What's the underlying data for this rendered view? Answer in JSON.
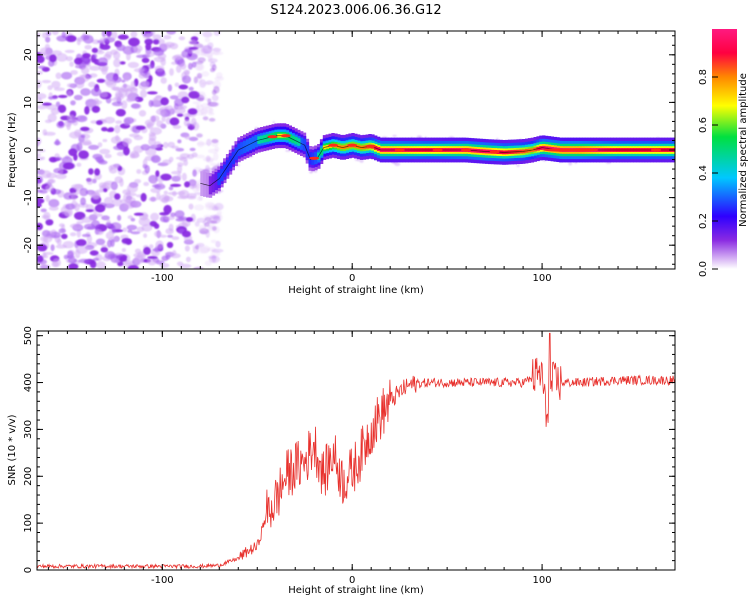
{
  "figure_title": "S124.2023.006.06.36.G12",
  "colors": {
    "snr_line": "#e8322e",
    "frame": "#000000",
    "ridge_core": "#ff2a1a"
  },
  "colormap": [
    "#ffffff",
    "#8a2be2",
    "#2e00ff",
    "#00c8ff",
    "#00e040",
    "#ffff00",
    "#ff8800",
    "#ff0040",
    "#ff1493"
  ],
  "chart_data": [
    {
      "type": "heatmap",
      "title": "S124.2023.006.06.36.G12",
      "xlabel": "Height of straight line (km)",
      "ylabel": "Frequency (Hz)",
      "xlim": [
        -166,
        170
      ],
      "ylim": [
        -25,
        25
      ],
      "xticks": [
        -100,
        0,
        100
      ],
      "yticks": [
        -20,
        -10,
        0,
        10,
        20
      ],
      "colorbar": {
        "label": "Normalized spectral amplitude",
        "range": [
          0,
          1
        ],
        "ticks": [
          "0.0",
          "0.2",
          "0.4",
          "0.6",
          "0.8"
        ]
      },
      "noise_region_x": [
        -166,
        -75
      ],
      "ridge": {
        "x": [
          -80,
          -75,
          -70,
          -65,
          -60,
          -55,
          -50,
          -45,
          -40,
          -35,
          -30,
          -25,
          -22,
          -18,
          -15,
          -10,
          -5,
          0,
          5,
          10,
          15,
          20,
          40,
          60,
          70,
          80,
          90,
          95,
          100,
          110,
          120,
          140,
          160,
          170
        ],
        "freq": [
          -7,
          -7.5,
          -6,
          -3,
          0,
          1,
          2,
          2.5,
          3,
          3,
          2,
          1,
          -2,
          -1.5,
          0.5,
          1,
          0.5,
          1,
          0.5,
          0.8,
          0,
          0,
          0,
          0,
          -0.3,
          -0.5,
          -0.3,
          0,
          0.5,
          0,
          0,
          0,
          0,
          0
        ],
        "amplitude": [
          0.3,
          0.4,
          0.55,
          0.5,
          0.55,
          0.6,
          0.6,
          0.65,
          0.7,
          0.7,
          0.65,
          0.55,
          0.5,
          0.6,
          0.7,
          0.75,
          0.8,
          0.8,
          0.8,
          0.85,
          0.95,
          0.95,
          0.9,
          0.95,
          0.95,
          0.9,
          0.85,
          0.8,
          0.95,
          1.0,
          1.0,
          0.9,
          0.9,
          0.9
        ]
      }
    },
    {
      "type": "line",
      "xlabel": "Height of straight line (km)",
      "ylabel": "SNR (10 * v/v)",
      "xlim": [
        -166,
        170
      ],
      "ylim": [
        0,
        510
      ],
      "xticks": [
        -100,
        0,
        100
      ],
      "yticks": [
        0,
        100,
        200,
        300,
        400,
        500
      ],
      "series": [
        {
          "x": [
            -166,
            -140,
            -120,
            -100,
            -80,
            -70,
            -60,
            -55,
            -50,
            -45,
            -40,
            -35,
            -30,
            -25,
            -20,
            -15,
            -10,
            -5,
            0,
            5,
            10,
            15,
            20,
            25,
            30,
            40,
            50,
            60,
            70,
            80,
            90,
            95,
            100,
            102,
            105,
            110,
            120,
            140,
            160,
            170
          ],
          "y": [
            8,
            8,
            8,
            8,
            8,
            10,
            25,
            40,
            50,
            120,
            150,
            200,
            220,
            230,
            270,
            200,
            250,
            190,
            210,
            250,
            300,
            330,
            360,
            380,
            395,
            400,
            400,
            400,
            400,
            400,
            400,
            410,
            420,
            330,
            400,
            400,
            400,
            405,
            405,
            405
          ]
        }
      ]
    }
  ]
}
